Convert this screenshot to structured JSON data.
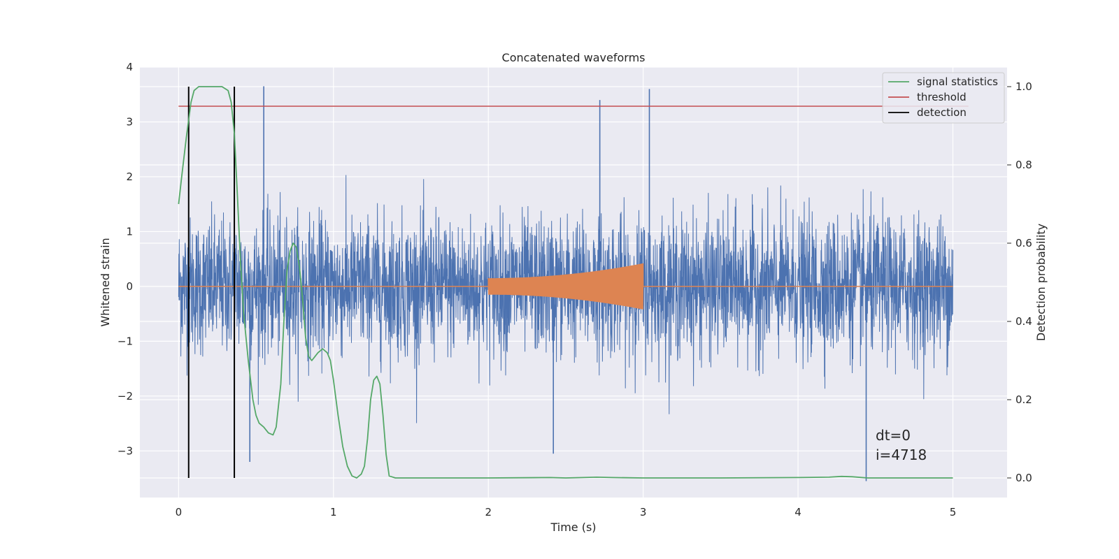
{
  "chart_data": {
    "type": "line",
    "title": "Concatenated waveforms",
    "xlabel": "Time (s)",
    "ylabel": "Whitened strain",
    "ylabel_right": "Detection probability",
    "xlim": [
      -0.25,
      5.35
    ],
    "ylim": [
      -3.85,
      4.0
    ],
    "ylim_right": [
      -0.05,
      1.05
    ],
    "x_ticks": [
      0,
      1,
      2,
      3,
      4,
      5
    ],
    "x_tick_labels": [
      "0",
      "1",
      "2",
      "3",
      "4",
      "5"
    ],
    "y_ticks": [
      -3,
      -2,
      -1,
      0,
      1,
      2,
      3,
      4
    ],
    "y_tick_labels": [
      "−3",
      "−2",
      "−1",
      "0",
      "1",
      "2",
      "3",
      "4"
    ],
    "y_right_ticks": [
      0.0,
      0.2,
      0.4,
      0.6,
      0.8,
      1.0
    ],
    "y_right_tick_labels": [
      "0.0",
      "0.2",
      "0.4",
      "0.6",
      "0.8",
      "1.0"
    ],
    "grid": true,
    "legend_position": "top-right",
    "legend": [
      {
        "label": "signal statistics",
        "color": "#55a868"
      },
      {
        "label": "threshold",
        "color": "#c44e52"
      },
      {
        "label": "detection",
        "color": "#000000"
      }
    ],
    "series": [
      {
        "role": "whitened noise",
        "color": "#4c72b0",
        "x_range": [
          0,
          5
        ],
        "typical_range": [
          -1.6,
          1.6
        ],
        "spikes": [
          {
            "x": 0.55,
            "y": 3.65
          },
          {
            "x": 2.72,
            "y": 3.4
          },
          {
            "x": 3.04,
            "y": 3.6
          },
          {
            "x": 2.42,
            "y": -3.05
          },
          {
            "x": 0.46,
            "y": -3.2
          },
          {
            "x": 4.44,
            "y": -3.55
          }
        ]
      },
      {
        "role": "injected signal",
        "color": "#dd8452",
        "x_range": [
          0,
          5
        ],
        "chirp_range": [
          2.0,
          3.0
        ],
        "amplitude_start": 0.15,
        "amplitude_end": 0.42
      },
      {
        "name": "signal statistics",
        "axis": "right",
        "color": "#55a868",
        "x": [
          0,
          0.02,
          0.05,
          0.08,
          0.1,
          0.13,
          0.17,
          0.22,
          0.28,
          0.32,
          0.34,
          0.36,
          0.38,
          0.4,
          0.42,
          0.45,
          0.48,
          0.5,
          0.52,
          0.55,
          0.58,
          0.61,
          0.63,
          0.66,
          0.68,
          0.7,
          0.72,
          0.74,
          0.76,
          0.78,
          0.8,
          0.82,
          0.84,
          0.86,
          0.88,
          0.9,
          0.93,
          0.96,
          0.98,
          1.0,
          1.03,
          1.06,
          1.09,
          1.12,
          1.15,
          1.18,
          1.2,
          1.22,
          1.24,
          1.26,
          1.28,
          1.3,
          1.32,
          1.34,
          1.36,
          1.4,
          1.5,
          2.0,
          2.4,
          2.5,
          2.7,
          2.8,
          3.0,
          3.5,
          4.0,
          4.2,
          4.28,
          4.35,
          4.45,
          5.0
        ],
        "values": [
          0.7,
          0.77,
          0.87,
          0.96,
          0.99,
          1.0,
          1.0,
          1.0,
          1.0,
          0.99,
          0.96,
          0.88,
          0.72,
          0.55,
          0.42,
          0.3,
          0.2,
          0.16,
          0.14,
          0.13,
          0.115,
          0.11,
          0.13,
          0.24,
          0.4,
          0.53,
          0.58,
          0.6,
          0.59,
          0.54,
          0.46,
          0.36,
          0.31,
          0.3,
          0.31,
          0.32,
          0.33,
          0.32,
          0.3,
          0.25,
          0.16,
          0.08,
          0.03,
          0.005,
          0.0,
          0.01,
          0.03,
          0.1,
          0.2,
          0.25,
          0.26,
          0.24,
          0.16,
          0.06,
          0.005,
          0.0,
          0.0,
          0.0,
          0.001,
          0.0,
          0.002,
          0.001,
          0.0,
          0.0,
          0.001,
          0.002,
          0.004,
          0.003,
          0.0,
          0.0
        ]
      },
      {
        "name": "threshold",
        "axis": "right",
        "color": "#c44e52",
        "x": [
          0,
          5.1
        ],
        "values": [
          0.95,
          0.95
        ]
      },
      {
        "name": "detection",
        "axis": "right",
        "color": "#000000",
        "vlines": [
          0.065,
          0.36
        ],
        "ymin": 0.0,
        "ymax": 1.0
      }
    ],
    "annotations": [
      {
        "text": "dt=0",
        "x": 4.5,
        "y": 0.1
      },
      {
        "text": "i=4718",
        "x": 4.5,
        "y": 0.05
      }
    ]
  }
}
